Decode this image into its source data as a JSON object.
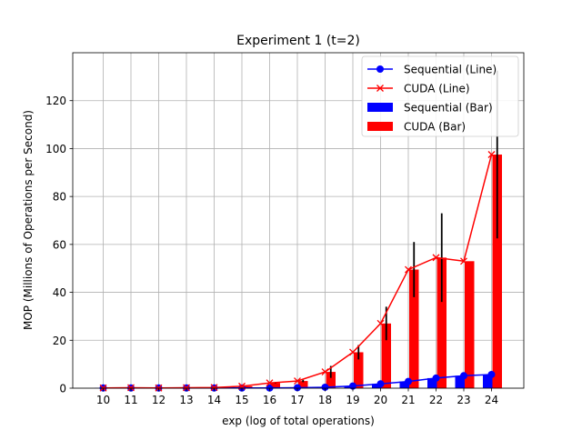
{
  "chart_data": {
    "type": "bar",
    "title": "Experiment 1 (t=2)",
    "xlabel": "exp (log of total operations)",
    "ylabel": "MOP (Millions of Operations per Second)",
    "categories": [
      "10",
      "11",
      "12",
      "13",
      "14",
      "15",
      "16",
      "17",
      "18",
      "19",
      "20",
      "21",
      "22",
      "23",
      "24"
    ],
    "ylim": [
      0,
      140
    ],
    "yticks": [
      0,
      20,
      40,
      60,
      80,
      100,
      120
    ],
    "grid": true,
    "legend_position": "top-right",
    "series": [
      {
        "name": "Sequential (Line)",
        "kind": "line",
        "marker": "circle",
        "color": "#0000ff",
        "values": [
          0.1,
          0.1,
          0.1,
          0.1,
          0.1,
          0.1,
          0.1,
          0.2,
          0.4,
          0.9,
          1.8,
          2.8,
          4.2,
          5.2,
          5.7
        ]
      },
      {
        "name": "CUDA (Line)",
        "kind": "line",
        "marker": "x",
        "color": "#ff0000",
        "values": [
          0.1,
          0.2,
          0.1,
          0.2,
          0.3,
          0.8,
          2.2,
          3.0,
          6.8,
          15.0,
          27.0,
          49.5,
          54.5,
          53.0,
          97.5
        ]
      },
      {
        "name": "Sequential (Bar)",
        "kind": "bar",
        "color": "#0000ff",
        "values": [
          0.1,
          0.1,
          0.1,
          0.1,
          0.1,
          0.1,
          0.1,
          0.2,
          0.4,
          0.9,
          1.8,
          2.8,
          4.2,
          5.2,
          5.7
        ],
        "errors": [
          0,
          0,
          0,
          0,
          0,
          0,
          0,
          0,
          0,
          0,
          0,
          0,
          0,
          0,
          0
        ]
      },
      {
        "name": "CUDA (Bar)",
        "kind": "bar",
        "color": "#ff0000",
        "values": [
          0.1,
          0.2,
          0.1,
          0.2,
          0.3,
          0.8,
          2.2,
          3.0,
          6.8,
          15.0,
          27.0,
          49.5,
          54.5,
          53.0,
          97.5
        ],
        "errors": [
          0,
          0,
          0,
          0,
          0,
          0,
          0.3,
          0.5,
          2.5,
          3.0,
          7.0,
          11.5,
          18.5,
          0,
          35.0
        ]
      }
    ]
  }
}
